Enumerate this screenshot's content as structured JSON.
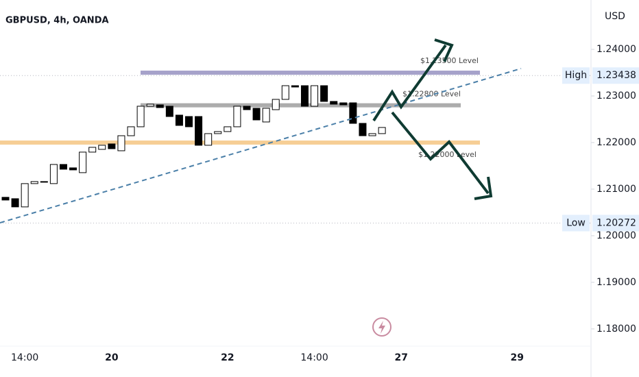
{
  "chart_data": {
    "type": "candlestick",
    "title": "GBPUSD, 4h, OANDA",
    "currency": "USD",
    "categories": [
      null,
      null,
      "14:00",
      null,
      null,
      null,
      null,
      null,
      null,
      null,
      null,
      "20",
      null,
      null,
      null,
      null,
      null,
      null,
      null,
      null,
      null,
      null,
      null,
      "22",
      null,
      null,
      null,
      null,
      null,
      null,
      null,
      null,
      "14:00",
      null,
      null,
      null,
      null,
      null,
      null,
      null,
      null,
      "27",
      null,
      null,
      null,
      null,
      null,
      null,
      null,
      null,
      null,
      null,
      null,
      "29"
    ],
    "open": [
      1.20825,
      1.20795,
      1.20619,
      1.21119,
      1.21148,
      1.21119,
      1.2153,
      1.21457,
      1.21354,
      1.21795,
      1.21854,
      1.21971,
      1.21824,
      1.22147,
      1.22339,
      1.2278,
      1.22809,
      1.2278,
      1.22589,
      1.22559,
      1.22559,
      1.21942,
      1.22192,
      1.22236,
      1.22339,
      1.2278,
      1.22736,
      1.22442,
      1.22706,
      1.22927,
      1.23221,
      1.23221,
      1.2278,
      1.23221,
      1.22883,
      1.22853,
      1.22853,
      1.22412,
      1.22147,
      1.22192,
      null,
      null,
      null,
      null,
      null,
      null,
      null,
      null,
      null,
      null,
      null,
      null,
      null,
      null
    ],
    "high": {
      "label": "High",
      "value": 1.23438
    },
    "low": {
      "label": "Low",
      "value": 1.20272
    },
    "close": [
      1.20766,
      1.20619,
      1.21119,
      1.21163,
      1.21163,
      1.2153,
      1.21428,
      1.21413,
      1.21795,
      1.21898,
      1.21942,
      1.21868,
      1.22147,
      1.22339,
      1.2278,
      1.22824,
      1.22751,
      1.22559,
      1.22368,
      1.22339,
      1.21942,
      1.22192,
      1.22236,
      1.22339,
      1.2278,
      1.22706,
      1.22486,
      1.22736,
      1.22927,
      1.23221,
      1.23192,
      1.2278,
      1.23221,
      1.22883,
      1.22824,
      1.22809,
      1.22412,
      1.22147,
      1.22192,
      1.22324,
      null,
      null,
      null,
      null,
      null,
      null,
      null,
      null,
      null,
      null,
      null,
      null,
      null,
      null
    ],
    "ylim": [
      1.1763,
      1.2506
    ],
    "yticks": [
      {
        "value": 1.18,
        "label": "1.18000"
      },
      {
        "value": 1.19,
        "label": "1.19000"
      },
      {
        "value": 1.2,
        "label": "1.20000"
      },
      {
        "value": 1.21,
        "label": "1.21000"
      },
      {
        "value": 1.22,
        "label": "1.22000"
      },
      {
        "value": 1.23,
        "label": "1.23000"
      },
      {
        "value": 1.24,
        "label": "1.24000"
      }
    ],
    "levels": [
      {
        "value": 1.235,
        "label": "$1.23500 Level",
        "color": "#9c98c4"
      },
      {
        "value": 1.228,
        "label": "$1.22800 Level",
        "color": "#a3a3a3"
      },
      {
        "value": 1.22,
        "label": "$1.22000 Level",
        "color": "#f5c98a"
      }
    ]
  }
}
